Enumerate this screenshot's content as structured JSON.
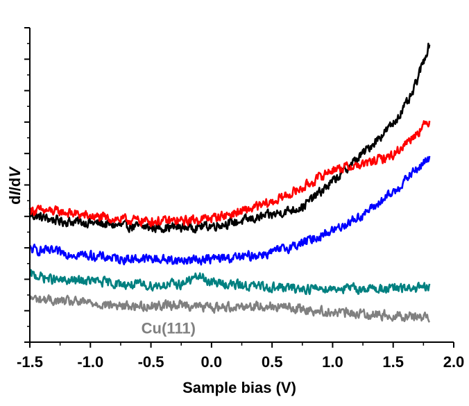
{
  "chart_data": {
    "type": "line",
    "title": "",
    "xlabel": "Sample bias (V)",
    "ylabel_parts": [
      "d",
      "I",
      "/d",
      "V"
    ],
    "xlim": [
      -1.5,
      2.0
    ],
    "ylim": [
      0,
      10
    ],
    "x_ticks": [
      "-1.5",
      "-1.0",
      "-0.5",
      "0.0",
      "0.5",
      "1.0",
      "1.5",
      "2.0"
    ],
    "y_tick_labels_shown": false,
    "grid": false,
    "legend": "none",
    "annotations": [
      {
        "text": "Cu(111)",
        "x": -0.15,
        "y": 0.45,
        "color": "#808080"
      }
    ],
    "series": [
      {
        "color": "#000000",
        "x": [
          -1.5,
          -1.25,
          -1.0,
          -0.75,
          -0.5,
          -0.25,
          0.0,
          0.25,
          0.5,
          0.75,
          1.0,
          1.25,
          1.5,
          1.65,
          1.8
        ],
        "y": [
          4.05,
          3.85,
          3.8,
          3.7,
          3.65,
          3.65,
          3.7,
          3.85,
          4.05,
          4.3,
          5.1,
          6.0,
          6.95,
          7.8,
          9.5
        ]
      },
      {
        "color": "#ff0000",
        "x": [
          -1.5,
          -1.25,
          -1.0,
          -0.75,
          -0.5,
          -0.25,
          0.0,
          0.25,
          0.5,
          0.75,
          1.0,
          1.25,
          1.5,
          1.65,
          1.8
        ],
        "y": [
          4.2,
          4.15,
          4.0,
          3.9,
          3.85,
          3.85,
          3.95,
          4.15,
          4.45,
          4.9,
          5.5,
          5.65,
          5.95,
          6.5,
          7.05
        ]
      },
      {
        "color": "#0000ff",
        "x": [
          -1.5,
          -1.25,
          -1.0,
          -0.75,
          -0.5,
          -0.25,
          0.0,
          0.25,
          0.5,
          0.75,
          1.0,
          1.25,
          1.5,
          1.65,
          1.8
        ],
        "y": [
          2.95,
          2.85,
          2.75,
          2.65,
          2.65,
          2.6,
          2.65,
          2.7,
          2.85,
          3.15,
          3.55,
          4.05,
          4.75,
          5.35,
          5.85
        ]
      },
      {
        "color": "#008080",
        "x": [
          -1.5,
          -1.25,
          -1.0,
          -0.75,
          -0.5,
          -0.25,
          -0.1,
          0.0,
          0.25,
          0.5,
          0.75,
          1.0,
          1.25,
          1.5,
          1.8
        ],
        "y": [
          2.15,
          1.95,
          1.95,
          1.85,
          1.8,
          1.85,
          2.1,
          1.9,
          1.8,
          1.75,
          1.7,
          1.72,
          1.7,
          1.7,
          1.72
        ]
      },
      {
        "color": "#808080",
        "x": [
          -1.5,
          -1.25,
          -1.0,
          -0.75,
          -0.5,
          -0.25,
          0.0,
          0.25,
          0.5,
          0.75,
          1.0,
          1.25,
          1.5,
          1.8
        ],
        "y": [
          1.4,
          1.3,
          1.25,
          1.15,
          1.15,
          1.2,
          1.1,
          1.15,
          1.15,
          1.05,
          0.95,
          0.9,
          0.85,
          0.8
        ]
      }
    ]
  }
}
